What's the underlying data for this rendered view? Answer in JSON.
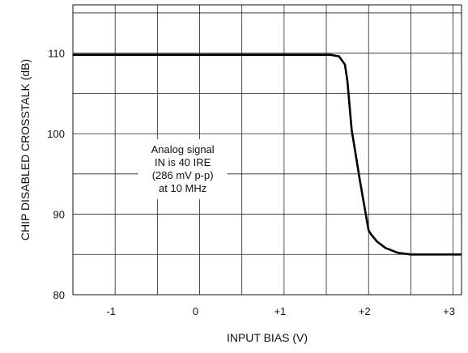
{
  "chart_data": {
    "type": "line",
    "title": "",
    "xlabel": "INPUT BIAS  (V)",
    "ylabel": "CHIP DISABLED CROSSTALK (dB)",
    "xlim": [
      -1.5,
      3.1
    ],
    "ylim": [
      80,
      116
    ],
    "grid": true,
    "x_ticks": [
      -1,
      0,
      1,
      2,
      3
    ],
    "x_tick_labels": [
      "-1",
      "0",
      "+1",
      "+2",
      "+3"
    ],
    "y_ticks": [
      80,
      90,
      100,
      110
    ],
    "y_tick_labels": [
      "80",
      "90",
      "100",
      "110"
    ],
    "series": [
      {
        "name": "",
        "x": [
          -1.5,
          1.4,
          1.55,
          1.65,
          1.72,
          1.75,
          1.8,
          1.9,
          2.0,
          2.03,
          2.1,
          2.2,
          2.35,
          2.5,
          3.1
        ],
        "y": [
          109.8,
          109.8,
          109.8,
          109.6,
          108.6,
          106.5,
          100.5,
          94.0,
          88.0,
          87.5,
          86.6,
          85.8,
          85.2,
          85.0,
          85.0
        ]
      }
    ],
    "annotation": {
      "lines": [
        "Analog signal",
        "IN is 40 IRE",
        "(286 mV p-p)",
        "at 10 MHz"
      ],
      "x": -0.2,
      "y": 95.6
    }
  }
}
